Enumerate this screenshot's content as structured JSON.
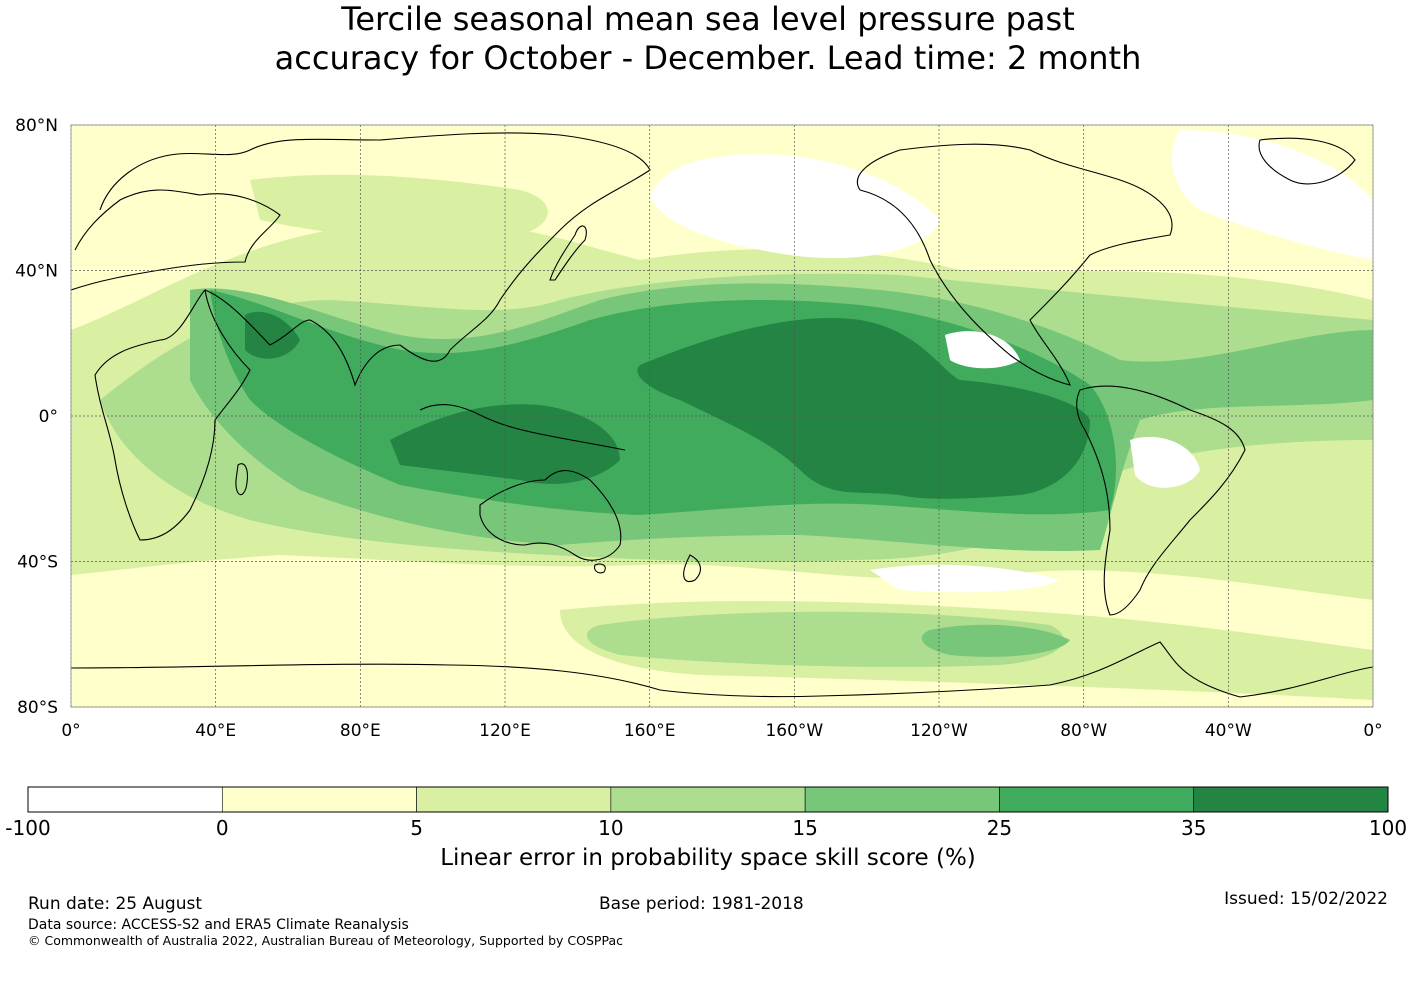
{
  "title": {
    "line1": "Tercile seasonal mean sea level pressure past",
    "line2": "accuracy for October - December. Lead time: 2 month"
  },
  "map": {
    "lat_labels": [
      "80°N",
      "40°N",
      "0°",
      "40°S",
      "80°S"
    ],
    "lon_labels": [
      "0°",
      "40°E",
      "80°E",
      "120°E",
      "160°E",
      "160°W",
      "120°W",
      "80°W",
      "40°W",
      "0°"
    ],
    "extent": {
      "lon_range": [
        0,
        360
      ],
      "lat_range": [
        -80,
        80
      ]
    }
  },
  "colorbar": {
    "title": "Linear error in probability space skill score (%)",
    "tick_labels": [
      "-100",
      "0",
      "5",
      "10",
      "15",
      "25",
      "35",
      "100"
    ],
    "colors": [
      "#ffffff",
      "#ffffcc",
      "#d9f0a3",
      "#addd8e",
      "#78c679",
      "#41ab5d",
      "#238443"
    ]
  },
  "footer": {
    "run_date": "Run date: 25 August",
    "base_period": "Base period: 1981-2018",
    "issued": "Issued: 15/02/2022",
    "data_source": "Data source: ACCESS-S2 and ERA5 Climate Reanalysis",
    "copyright": "© Commonwealth of Australia 2022, Australian Bureau of Meteorology, Supported by COSPPac"
  }
}
